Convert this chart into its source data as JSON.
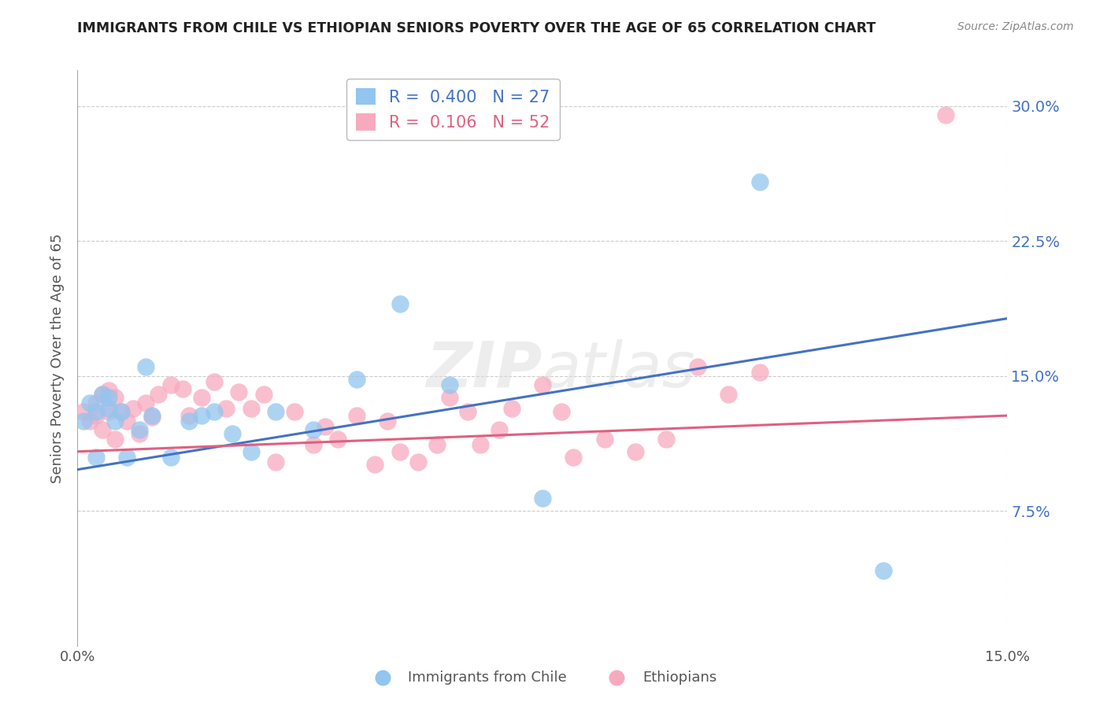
{
  "title": "IMMIGRANTS FROM CHILE VS ETHIOPIAN SENIORS POVERTY OVER THE AGE OF 65 CORRELATION CHART",
  "source": "Source: ZipAtlas.com",
  "ylabel": "Seniors Poverty Over the Age of 65",
  "xlabel_chile": "Immigrants from Chile",
  "xlabel_ethiopians": "Ethiopians",
  "watermark": "ZIPatlas",
  "xlim": [
    0.0,
    0.15
  ],
  "ylim": [
    0.0,
    0.32
  ],
  "yticks": [
    0.075,
    0.15,
    0.225,
    0.3
  ],
  "xticks": [
    0.0,
    0.15
  ],
  "chile_R": 0.4,
  "chile_N": 27,
  "ethiopia_R": 0.106,
  "ethiopia_N": 52,
  "chile_color": "#92C5F0",
  "ethiopia_color": "#F7AABE",
  "chile_line_color": "#4472C4",
  "ethiopia_line_color": "#E06080",
  "chile_x": [
    0.001,
    0.002,
    0.003,
    0.004,
    0.005,
    0.005,
    0.006,
    0.007,
    0.008,
    0.01,
    0.011,
    0.012,
    0.015,
    0.018,
    0.02,
    0.022,
    0.025,
    0.028,
    0.032,
    0.038,
    0.045,
    0.052,
    0.06,
    0.075,
    0.11,
    0.13,
    0.003
  ],
  "chile_y": [
    0.125,
    0.135,
    0.13,
    0.14,
    0.138,
    0.132,
    0.125,
    0.13,
    0.105,
    0.12,
    0.155,
    0.128,
    0.105,
    0.125,
    0.128,
    0.13,
    0.118,
    0.108,
    0.13,
    0.12,
    0.148,
    0.19,
    0.145,
    0.082,
    0.258,
    0.042,
    0.105
  ],
  "ethiopia_x": [
    0.001,
    0.002,
    0.003,
    0.003,
    0.004,
    0.004,
    0.005,
    0.005,
    0.006,
    0.006,
    0.007,
    0.008,
    0.009,
    0.01,
    0.011,
    0.012,
    0.013,
    0.015,
    0.017,
    0.018,
    0.02,
    0.022,
    0.024,
    0.026,
    0.028,
    0.03,
    0.032,
    0.035,
    0.038,
    0.04,
    0.042,
    0.045,
    0.048,
    0.05,
    0.052,
    0.055,
    0.058,
    0.06,
    0.063,
    0.065,
    0.068,
    0.07,
    0.075,
    0.078,
    0.08,
    0.085,
    0.09,
    0.095,
    0.1,
    0.105,
    0.11,
    0.14
  ],
  "ethiopia_y": [
    0.13,
    0.125,
    0.135,
    0.128,
    0.14,
    0.12,
    0.13,
    0.142,
    0.115,
    0.138,
    0.13,
    0.125,
    0.132,
    0.118,
    0.135,
    0.127,
    0.14,
    0.145,
    0.143,
    0.128,
    0.138,
    0.147,
    0.132,
    0.141,
    0.132,
    0.14,
    0.102,
    0.13,
    0.112,
    0.122,
    0.115,
    0.128,
    0.101,
    0.125,
    0.108,
    0.102,
    0.112,
    0.138,
    0.13,
    0.112,
    0.12,
    0.132,
    0.145,
    0.13,
    0.105,
    0.115,
    0.108,
    0.115,
    0.155,
    0.14,
    0.152,
    0.295
  ],
  "chile_line_x0": 0.0,
  "chile_line_y0": 0.098,
  "chile_line_x1": 0.15,
  "chile_line_y1": 0.182,
  "ethiopia_line_x0": 0.0,
  "ethiopia_line_y0": 0.108,
  "ethiopia_line_x1": 0.15,
  "ethiopia_line_y1": 0.128
}
